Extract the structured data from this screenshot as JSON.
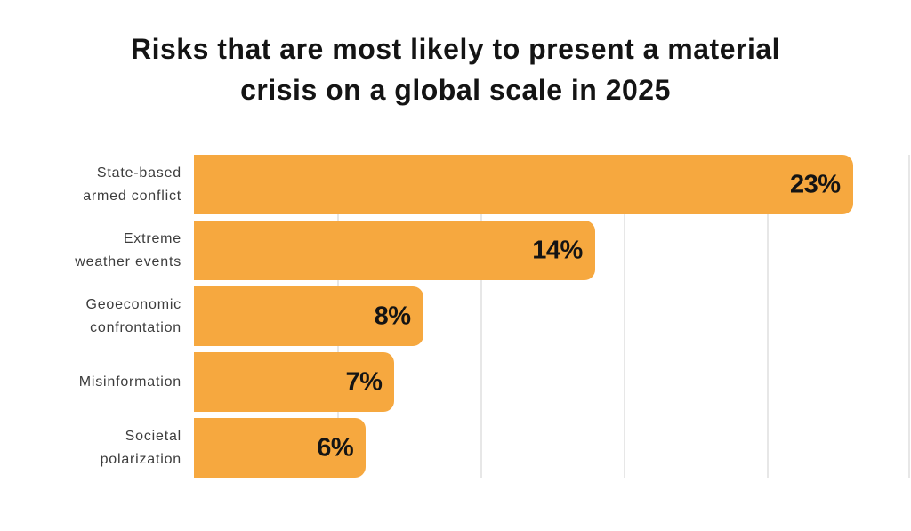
{
  "title": "Risks that are most likely to present a material crisis on a global scale in 2025",
  "title_lines": [
    "Risks that are most likely to present a material",
    "crisis on a global scale in 2025"
  ],
  "chart_data": {
    "type": "bar",
    "orientation": "horizontal",
    "title": "Risks that are most likely to present a material crisis on a global scale in 2025",
    "categories": [
      "State-based armed conflict",
      "Extreme weather events",
      "Geoeconomic confrontation",
      "Misinformation",
      "Societal polarization"
    ],
    "category_label_lines": [
      [
        "State-based",
        "armed conflict"
      ],
      [
        "Extreme",
        "weather events"
      ],
      [
        "Geoeconomic",
        "confrontation"
      ],
      [
        "Misinformation"
      ],
      [
        "Societal",
        "polarization"
      ]
    ],
    "values": [
      23,
      14,
      8,
      7,
      6
    ],
    "value_labels": [
      "23%",
      "14%",
      "8%",
      "7%",
      "6%"
    ],
    "xlabel": "",
    "ylabel": "",
    "xlim": [
      0,
      25
    ],
    "gridline_interval_pct": 5,
    "grid": true,
    "legend": "none",
    "colors": {
      "bar": "#f6a83f",
      "gridline": "#e7e7e7",
      "background": "#ffffff",
      "title_text": "#141414",
      "value_text": "#141414",
      "category_text": "#3c3c3c"
    }
  }
}
